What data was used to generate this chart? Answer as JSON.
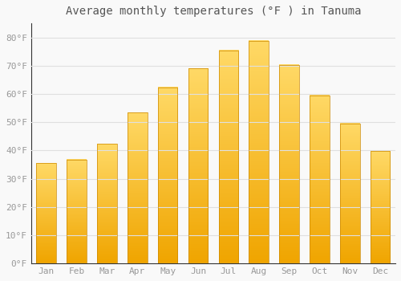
{
  "title": "Average monthly temperatures (°F ) in Tanuma",
  "months": [
    "Jan",
    "Feb",
    "Mar",
    "Apr",
    "May",
    "Jun",
    "Jul",
    "Aug",
    "Sep",
    "Oct",
    "Nov",
    "Dec"
  ],
  "values": [
    35.5,
    36.7,
    42.3,
    53.4,
    62.4,
    69.0,
    75.4,
    78.8,
    70.2,
    59.4,
    49.5,
    39.7
  ],
  "bar_color_bottom": "#F0A500",
  "bar_color_top": "#FFD966",
  "background_color": "#f9f9f9",
  "grid_color": "#e0e0e0",
  "ylim": [
    0,
    85
  ],
  "yticks": [
    0,
    10,
    20,
    30,
    40,
    50,
    60,
    70,
    80
  ],
  "ytick_labels": [
    "0°F",
    "10°F",
    "20°F",
    "30°F",
    "40°F",
    "50°F",
    "60°F",
    "70°F",
    "80°F"
  ],
  "title_fontsize": 10,
  "tick_fontsize": 8,
  "font_color": "#999999",
  "title_color": "#555555"
}
